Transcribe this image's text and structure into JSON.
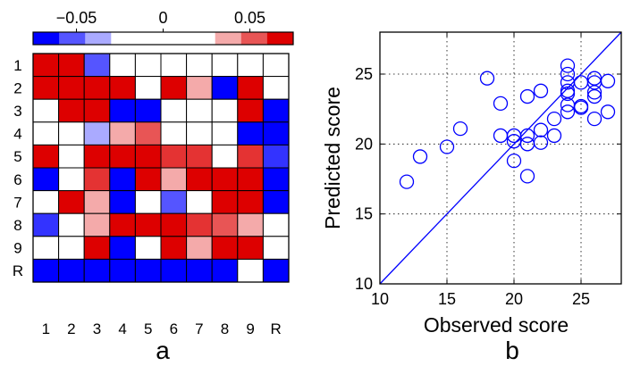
{
  "chart_data": [
    {
      "type": "heatmap",
      "panel_label": "a",
      "rows": [
        "1",
        "2",
        "3",
        "4",
        "5",
        "6",
        "7",
        "8",
        "9",
        "R"
      ],
      "columns": [
        "1",
        "2",
        "3",
        "4",
        "5",
        "6",
        "7",
        "8",
        "9",
        "R"
      ],
      "colorbar": {
        "range": [
          -0.075,
          0.075
        ],
        "tick_values": [
          -0.05,
          0,
          0.05
        ],
        "tick_labels": [
          "−0.05",
          "0",
          "0.05"
        ],
        "levels": [
          -0.075,
          -0.05,
          -0.025,
          0,
          0,
          0,
          0,
          0.025,
          0.05,
          0.075
        ],
        "negative_color": "#0000ff",
        "positive_color": "#dd0000",
        "neutral_color": "#ffffff"
      },
      "values": [
        [
          0.075,
          0.075,
          -0.05,
          0,
          0,
          0,
          0,
          0,
          0,
          0
        ],
        [
          0.075,
          0.075,
          0.075,
          0.075,
          0,
          0.075,
          0.025,
          -0.075,
          0.075,
          0
        ],
        [
          0,
          0.075,
          0.075,
          -0.075,
          -0.075,
          0,
          0,
          0,
          0.075,
          -0.075
        ],
        [
          0,
          0,
          -0.025,
          0.025,
          0.05,
          0,
          0,
          0,
          -0.075,
          -0.075
        ],
        [
          0.075,
          0,
          0.075,
          0.075,
          0.075,
          0.06,
          0.06,
          0,
          0.06,
          -0.06
        ],
        [
          -0.075,
          0,
          0.06,
          -0.075,
          0.075,
          0.025,
          0.075,
          0.075,
          0.075,
          -0.075
        ],
        [
          0,
          0.075,
          0.025,
          -0.075,
          0,
          -0.05,
          0,
          0.075,
          0.075,
          -0.075
        ],
        [
          -0.06,
          0,
          0.025,
          0.075,
          0.075,
          0.075,
          0.06,
          0.05,
          0.025,
          0
        ],
        [
          0,
          0,
          0.075,
          -0.075,
          0,
          0.075,
          0.025,
          0.075,
          0.075,
          0
        ],
        [
          -0.075,
          -0.075,
          -0.075,
          -0.075,
          -0.075,
          -0.075,
          -0.075,
          -0.075,
          0,
          -0.075
        ]
      ]
    },
    {
      "type": "scatter",
      "panel_label": "b",
      "xlabel": "Observed score",
      "ylabel": "Predicted score",
      "xlim": [
        10,
        28
      ],
      "ylim": [
        10,
        28
      ],
      "xticks": [
        10,
        15,
        20,
        25
      ],
      "yticks": [
        10,
        15,
        20,
        25
      ],
      "grid": true,
      "marker": "open-circle",
      "color": "#0000ff",
      "reference_line": {
        "type": "identity",
        "from": [
          10,
          10
        ],
        "to": [
          28,
          28
        ]
      },
      "points": [
        [
          12,
          17.3
        ],
        [
          13,
          19.1
        ],
        [
          15,
          19.8
        ],
        [
          16,
          21.1
        ],
        [
          18,
          24.7
        ],
        [
          19,
          22.9
        ],
        [
          19,
          20.6
        ],
        [
          20,
          20.6
        ],
        [
          20,
          20.2
        ],
        [
          20,
          18.8
        ],
        [
          21,
          23.4
        ],
        [
          21,
          20.6
        ],
        [
          21,
          20.0
        ],
        [
          21,
          17.7
        ],
        [
          22,
          23.8
        ],
        [
          22,
          21.0
        ],
        [
          22,
          20.1
        ],
        [
          23,
          21.8
        ],
        [
          23,
          20.6
        ],
        [
          24,
          25.6
        ],
        [
          24,
          25.0
        ],
        [
          24,
          24.4
        ],
        [
          24,
          23.8
        ],
        [
          24,
          23.6
        ],
        [
          24,
          22.8
        ],
        [
          24,
          22.3
        ],
        [
          25,
          24.4
        ],
        [
          25,
          22.6
        ],
        [
          25,
          22.7
        ],
        [
          26,
          24.7
        ],
        [
          26,
          24.4
        ],
        [
          26,
          23.7
        ],
        [
          26,
          23.4
        ],
        [
          26,
          21.8
        ],
        [
          27,
          24.5
        ],
        [
          27,
          22.3
        ]
      ]
    }
  ]
}
